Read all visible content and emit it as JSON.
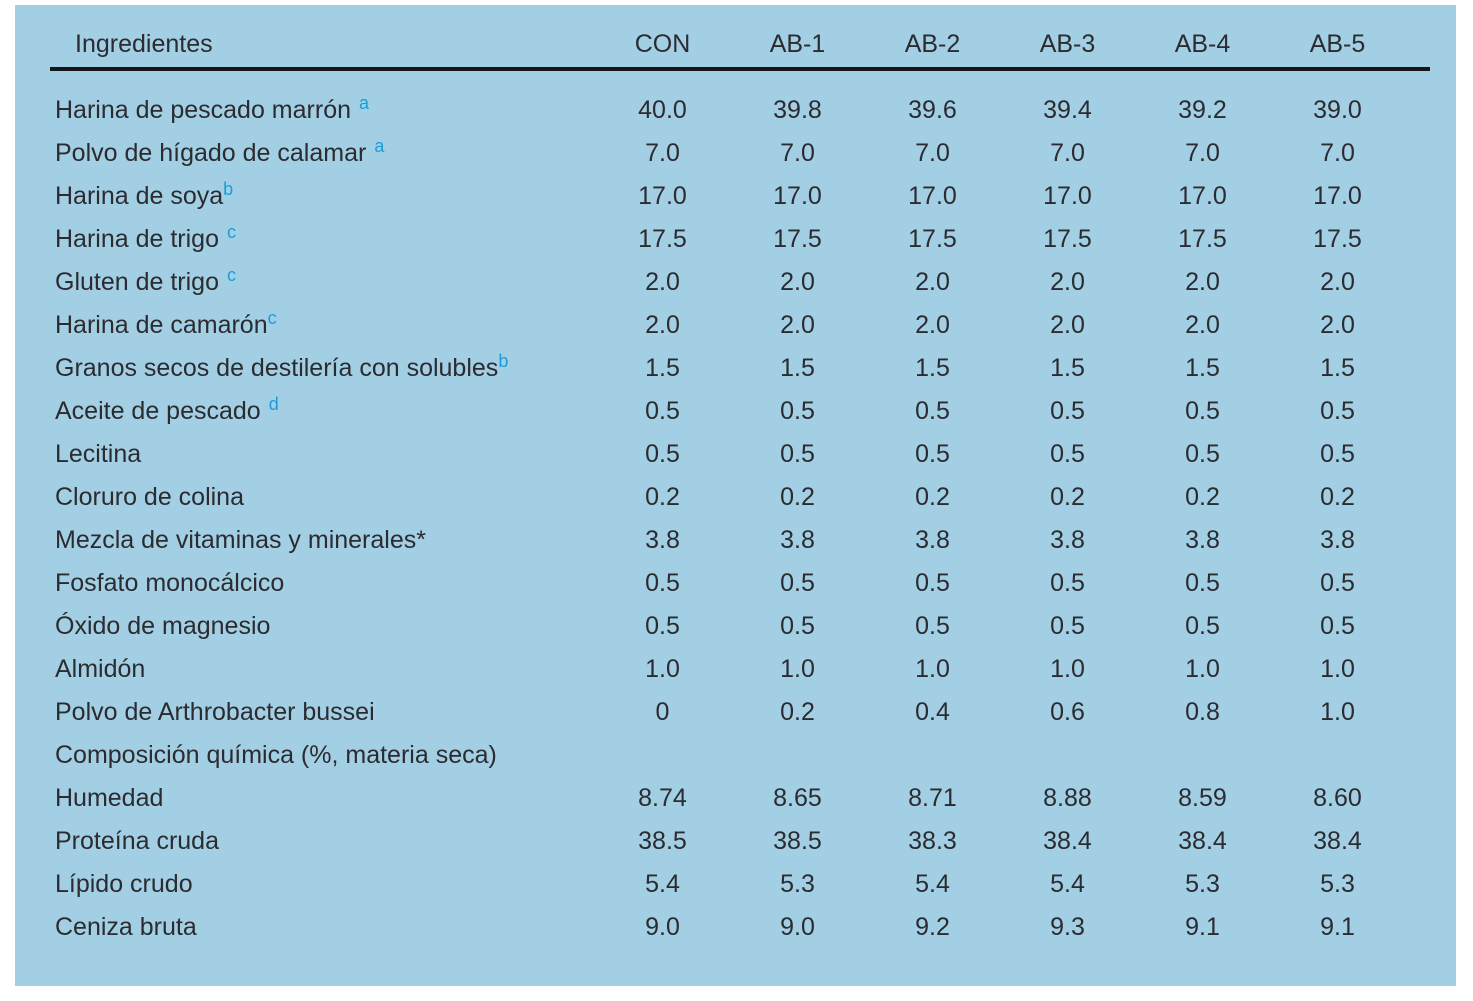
{
  "colors": {
    "panel_background": "#a3cfe4",
    "text": "#2b2b30",
    "footnote_marker_blue": "#1b9dd9",
    "header_rule": "#16161a"
  },
  "table": {
    "columns": [
      "Ingredientes",
      "CON",
      "AB-1",
      "AB-2",
      "AB-3",
      "AB-4",
      "AB-5"
    ],
    "rows": [
      {
        "label": "Harina de pescado marrón",
        "sup": "a",
        "sup_spaced": true,
        "values": [
          "40.0",
          "39.8",
          "39.6",
          "39.4",
          "39.2",
          "39.0"
        ]
      },
      {
        "label": "Polvo de hígado de calamar",
        "sup": "a",
        "sup_spaced": true,
        "values": [
          "7.0",
          "7.0",
          "7.0",
          "7.0",
          "7.0",
          "7.0"
        ]
      },
      {
        "label": "Harina de soya",
        "sup": "b",
        "sup_spaced": false,
        "values": [
          "17.0",
          "17.0",
          "17.0",
          "17.0",
          "17.0",
          "17.0"
        ]
      },
      {
        "label": "Harina de trigo",
        "sup": "c",
        "sup_spaced": true,
        "values": [
          "17.5",
          "17.5",
          "17.5",
          "17.5",
          "17.5",
          "17.5"
        ]
      },
      {
        "label": "Gluten de trigo",
        "sup": "c",
        "sup_spaced": true,
        "values": [
          "2.0",
          "2.0",
          "2.0",
          "2.0",
          "2.0",
          "2.0"
        ]
      },
      {
        "label": "Harina de camarón",
        "sup": "c",
        "sup_spaced": false,
        "values": [
          "2.0",
          "2.0",
          "2.0",
          "2.0",
          "2.0",
          "2.0"
        ]
      },
      {
        "label": "Granos secos de destilería con solubles",
        "sup": "b",
        "sup_spaced": false,
        "values": [
          "1.5",
          "1.5",
          "1.5",
          "1.5",
          "1.5",
          "1.5"
        ]
      },
      {
        "label": "Aceite de pescado",
        "sup": "d",
        "sup_spaced": true,
        "values": [
          "0.5",
          "0.5",
          "0.5",
          "0.5",
          "0.5",
          "0.5"
        ]
      },
      {
        "label": "Lecitina",
        "sup": "",
        "sup_spaced": false,
        "values": [
          "0.5",
          "0.5",
          "0.5",
          "0.5",
          "0.5",
          "0.5"
        ]
      },
      {
        "label": "Cloruro de colina",
        "sup": "",
        "sup_spaced": false,
        "values": [
          "0.2",
          "0.2",
          "0.2",
          "0.2",
          "0.2",
          "0.2"
        ]
      },
      {
        "label": "Mezcla de vitaminas y minerales*",
        "sup": "",
        "sup_spaced": false,
        "values": [
          "3.8",
          "3.8",
          "3.8",
          "3.8",
          "3.8",
          "3.8"
        ]
      },
      {
        "label": "Fosfato monocálcico",
        "sup": "",
        "sup_spaced": false,
        "values": [
          "0.5",
          "0.5",
          "0.5",
          "0.5",
          "0.5",
          "0.5"
        ]
      },
      {
        "label": "Óxido de magnesio",
        "sup": "",
        "sup_spaced": false,
        "values": [
          "0.5",
          "0.5",
          "0.5",
          "0.5",
          "0.5",
          "0.5"
        ]
      },
      {
        "label": "Almidón",
        "sup": "",
        "sup_spaced": false,
        "values": [
          "1.0",
          "1.0",
          "1.0",
          "1.0",
          "1.0",
          "1.0"
        ]
      },
      {
        "label": "Polvo de Arthrobacter bussei",
        "sup": "",
        "sup_spaced": false,
        "values": [
          "0",
          "0.2",
          "0.4",
          "0.6",
          "0.8",
          "1.0"
        ]
      },
      {
        "label": "Composición química (%, materia seca)",
        "sup": "",
        "sup_spaced": false,
        "values": [
          "",
          "",
          "",
          "",
          "",
          ""
        ]
      },
      {
        "label": "Humedad",
        "sup": "",
        "sup_spaced": false,
        "values": [
          "8.74",
          "8.65",
          "8.71",
          "8.88",
          "8.59",
          "8.60"
        ]
      },
      {
        "label": "Proteína cruda",
        "sup": "",
        "sup_spaced": false,
        "values": [
          "38.5",
          "38.5",
          "38.3",
          "38.4",
          "38.4",
          "38.4"
        ]
      },
      {
        "label": "Lípido crudo",
        "sup": "",
        "sup_spaced": false,
        "values": [
          "5.4",
          "5.3",
          "5.4",
          "5.4",
          "5.3",
          "5.3"
        ]
      },
      {
        "label": "Ceniza bruta",
        "sup": "",
        "sup_spaced": false,
        "values": [
          "9.0",
          "9.0",
          "9.2",
          "9.3",
          "9.1",
          "9.1"
        ]
      }
    ]
  }
}
